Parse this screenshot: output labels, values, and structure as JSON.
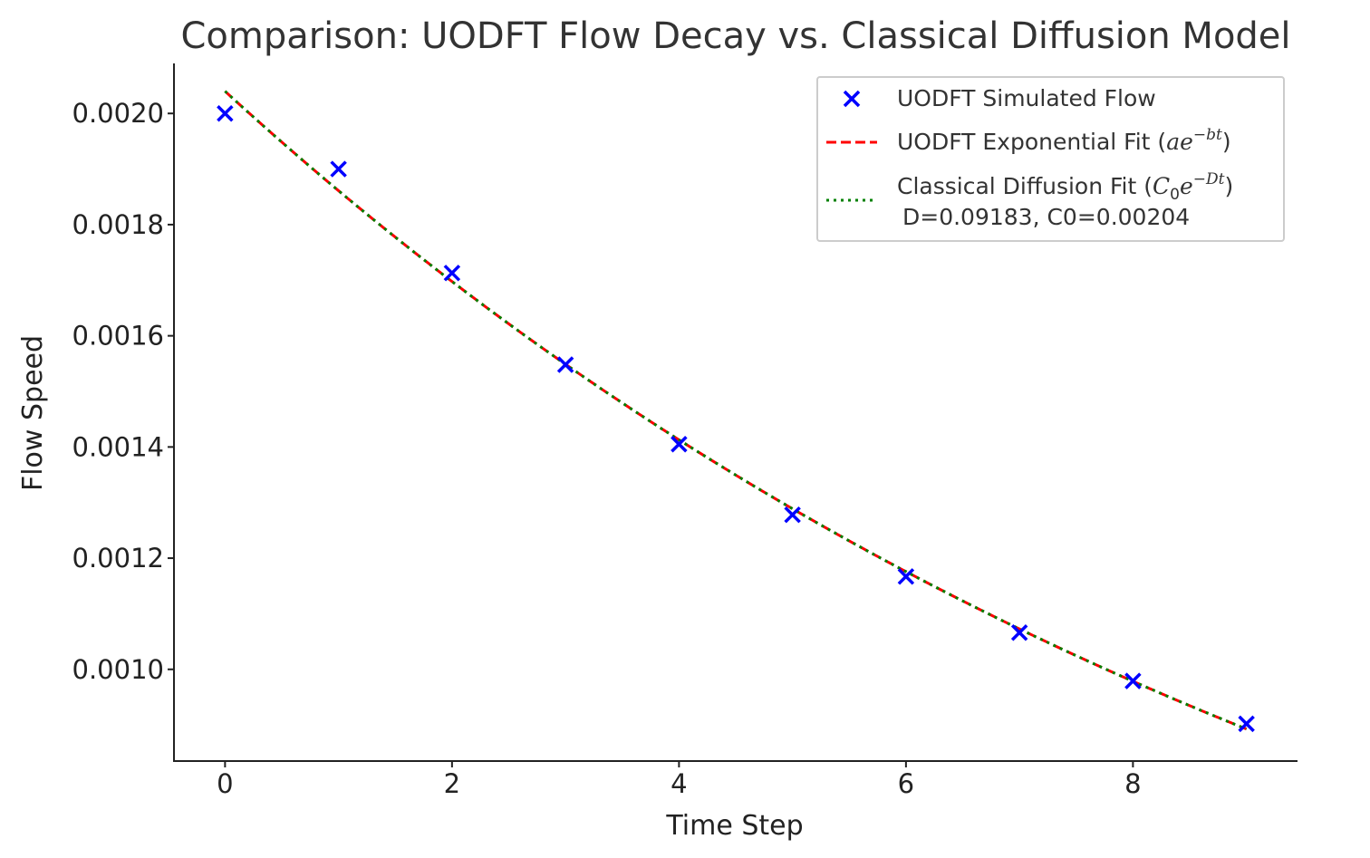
{
  "chart_data": {
    "type": "scatter",
    "title": "Comparison: UODFT Flow Decay vs. Classical Diffusion Model",
    "xlabel": "Time Step",
    "ylabel": "Flow Speed",
    "xlim": [
      -0.45,
      9.45
    ],
    "ylim": [
      0.000835,
      0.00209
    ],
    "xticks": [
      0,
      2,
      4,
      6,
      8
    ],
    "xtick_labels": [
      "0",
      "2",
      "4",
      "6",
      "8"
    ],
    "yticks": [
      0.001,
      0.0012,
      0.0014,
      0.0016,
      0.0018,
      0.002
    ],
    "ytick_labels": [
      "0.0010",
      "0.0012",
      "0.0014",
      "0.0016",
      "0.0018",
      "0.0020"
    ],
    "grid": false,
    "legend_position": "top-right",
    "series": [
      {
        "name": "UODFT Simulated Flow",
        "kind": "scatter",
        "marker": "x",
        "color": "#0000ff",
        "x": [
          0,
          1,
          2,
          3,
          4,
          5,
          6,
          7,
          8,
          9
        ],
        "y": [
          0.002,
          0.0019,
          0.001713,
          0.001548,
          0.001405,
          0.001278,
          0.001167,
          0.001066,
          0.000979,
          0.000902
        ]
      },
      {
        "name": "UODFT Exponential Fit",
        "math": "ae^{-bt}",
        "kind": "line",
        "style": "dashed",
        "color": "#ff0000",
        "a": 0.00204,
        "b": 0.09183
      },
      {
        "name": "Classical Diffusion Fit",
        "math": "C_0e^{-Dt}",
        "extra_label": "D=0.09183, C0=0.00204",
        "kind": "line",
        "style": "dotted",
        "color": "#008000",
        "C0": 0.00204,
        "D": 0.09183
      }
    ]
  },
  "legend": {
    "entry1": "UODFT Simulated Flow",
    "entry2_prefix": "UODFT Exponential Fit (",
    "entry2_a": "ae",
    "entry2_exp": "−bt",
    "entry2_suffix": ")",
    "entry3_prefix": "Classical Diffusion Fit (",
    "entry3_C": "C",
    "entry3_sub": "0",
    "entry3_e": "e",
    "entry3_exp": "−Dt",
    "entry3_suffix": ")",
    "entry3_line2": "D=0.09183, C0=0.00204"
  }
}
